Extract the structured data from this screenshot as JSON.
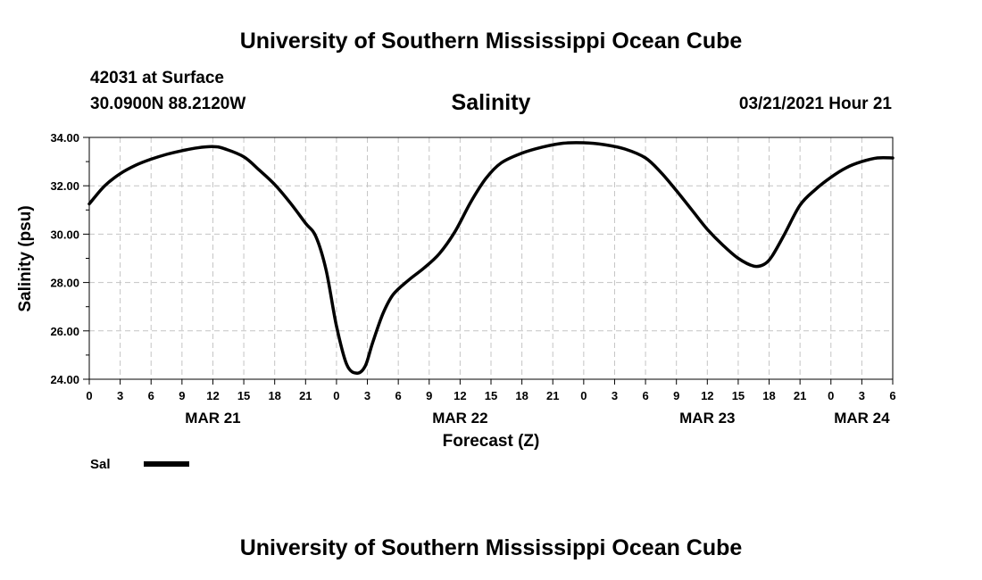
{
  "chart_data": {
    "type": "line",
    "title": "University of Southern Mississippi Ocean Cube",
    "footer_title": "University of Southern Mississippi Ocean Cube",
    "station": "42031 at Surface",
    "location": "30.0900N 88.2120W",
    "subtitle": "Salinity",
    "date": "03/21/2021 Hour 21",
    "xlabel": "Forecast (Z)",
    "ylabel": "Salinity (psu)",
    "ylim": [
      24,
      34
    ],
    "xlim": [
      0,
      78
    ],
    "grid": true,
    "y_ticks": [
      "24.00",
      "26.00",
      "28.00",
      "30.00",
      "32.00",
      "34.00"
    ],
    "y_tick_values": [
      24,
      26,
      28,
      30,
      32,
      34
    ],
    "x_tick_labels": [
      "0",
      "3",
      "6",
      "9",
      "12",
      "15",
      "18",
      "21",
      "0",
      "3",
      "6",
      "9",
      "12",
      "15",
      "18",
      "21",
      "0",
      "3",
      "6",
      "9",
      "12",
      "15",
      "18",
      "21",
      "0",
      "3",
      "6"
    ],
    "x_tick_step_hours": 3,
    "day_labels": [
      {
        "label": "MAR 21",
        "hour": 12
      },
      {
        "label": "MAR 22",
        "hour": 36
      },
      {
        "label": "MAR 23",
        "hour": 60
      },
      {
        "label": "MAR 24",
        "hour": 75
      }
    ],
    "series": [
      {
        "name": "Sal",
        "color": "#000000",
        "x": [
          0,
          1.5,
          3,
          4.5,
          6,
          7.5,
          9,
          10.5,
          12,
          13,
          15,
          16.5,
          18,
          19.5,
          21,
          22,
          23,
          24,
          25,
          26,
          26.8,
          27.5,
          28.5,
          29.5,
          31,
          32.5,
          34,
          35.5,
          37,
          38.5,
          40,
          42,
          44,
          46,
          48,
          50,
          52,
          54,
          55.5,
          57,
          58.5,
          60,
          61.5,
          63,
          64.5,
          65.5,
          66.3,
          67.5,
          69,
          70.5,
          72,
          73.5,
          75,
          76.5,
          78
        ],
        "values": [
          31.25,
          32.0,
          32.5,
          32.85,
          33.1,
          33.3,
          33.45,
          33.57,
          33.62,
          33.55,
          33.2,
          32.65,
          32.05,
          31.3,
          30.45,
          29.9,
          28.5,
          26.2,
          24.6,
          24.25,
          24.55,
          25.5,
          26.7,
          27.5,
          28.1,
          28.6,
          29.2,
          30.1,
          31.3,
          32.3,
          32.95,
          33.35,
          33.6,
          33.76,
          33.78,
          33.7,
          33.52,
          33.15,
          32.55,
          31.8,
          31.0,
          30.2,
          29.55,
          29.0,
          28.68,
          28.75,
          29.1,
          30.0,
          31.2,
          31.85,
          32.35,
          32.75,
          33.0,
          33.15,
          33.15
        ]
      }
    ],
    "legend": [
      {
        "label": "Sal",
        "color": "#000000"
      }
    ]
  }
}
